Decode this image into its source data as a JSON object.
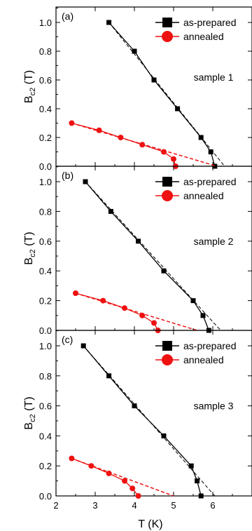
{
  "figure": {
    "xlabel": "T (K)",
    "ylabel_main": "B",
    "ylabel_sub": "c2",
    "ylabel_unit": " (T)",
    "x_ticks": [
      "2",
      "3",
      "4",
      "5",
      "6"
    ],
    "y_ticks": [
      "0.0",
      "0.2",
      "0.4",
      "0.6",
      "0.8",
      "1.0"
    ]
  },
  "legend": {
    "as_prepared": "as-prepared",
    "annealed": "annealed"
  },
  "colors": {
    "as_prepared": "#000000",
    "annealed": "#ee1111"
  },
  "chart_data": [
    {
      "type": "line",
      "panel_label": "(a)",
      "annotation": "sample 1",
      "xlim": [
        2,
        7
      ],
      "ylim": [
        0,
        1.1
      ],
      "series": [
        {
          "name": "as-prepared",
          "marker": "square",
          "x": [
            3.35,
            4.0,
            4.5,
            5.1,
            5.7,
            5.95,
            6.05
          ],
          "y": [
            1.0,
            0.8,
            0.6,
            0.4,
            0.2,
            0.1,
            0.0
          ],
          "fit": {
            "x": [
              3.35,
              6.3
            ],
            "y": [
              1.0,
              0.0
            ]
          }
        },
        {
          "name": "annealed",
          "marker": "circle",
          "x": [
            2.4,
            3.1,
            3.65,
            4.2,
            4.75,
            5.0,
            5.05
          ],
          "y": [
            0.3,
            0.25,
            0.2,
            0.15,
            0.1,
            0.05,
            0.0
          ],
          "fit": {
            "x": [
              2.4,
              6.1
            ],
            "y": [
              0.3,
              0.0
            ]
          }
        }
      ]
    },
    {
      "type": "line",
      "panel_label": "(b)",
      "annotation": "sample 2",
      "xlim": [
        2,
        7
      ],
      "ylim": [
        0,
        1.1
      ],
      "series": [
        {
          "name": "as-prepared",
          "marker": "square",
          "x": [
            2.75,
            3.4,
            4.1,
            4.75,
            5.5,
            5.75,
            5.9
          ],
          "y": [
            1.0,
            0.8,
            0.6,
            0.4,
            0.2,
            0.1,
            0.0
          ],
          "fit": {
            "x": [
              2.75,
              6.2
            ],
            "y": [
              1.0,
              0.0
            ]
          }
        },
        {
          "name": "annealed",
          "marker": "circle",
          "x": [
            2.5,
            3.2,
            3.75,
            4.2,
            4.5,
            4.6
          ],
          "y": [
            0.25,
            0.2,
            0.15,
            0.1,
            0.05,
            0.0
          ],
          "fit": {
            "x": [
              2.5,
              5.6
            ],
            "y": [
              0.25,
              0.0
            ]
          }
        }
      ]
    },
    {
      "type": "line",
      "panel_label": "(c)",
      "annotation": "sample 3",
      "xlim": [
        2,
        7
      ],
      "ylim": [
        0,
        1.1
      ],
      "series": [
        {
          "name": "as-prepared",
          "marker": "square",
          "x": [
            2.7,
            3.35,
            4.0,
            4.75,
            5.45,
            5.6,
            5.7
          ],
          "y": [
            1.0,
            0.8,
            0.6,
            0.4,
            0.2,
            0.1,
            0.0
          ],
          "fit": {
            "x": [
              2.7,
              6.05
            ],
            "y": [
              1.0,
              0.0
            ]
          }
        },
        {
          "name": "annealed",
          "marker": "circle",
          "x": [
            2.4,
            2.9,
            3.35,
            3.75,
            3.95,
            4.1
          ],
          "y": [
            0.25,
            0.2,
            0.15,
            0.1,
            0.05,
            0.0
          ],
          "fit": {
            "x": [
              2.4,
              5.0
            ],
            "y": [
              0.25,
              0.0
            ]
          }
        }
      ]
    }
  ]
}
